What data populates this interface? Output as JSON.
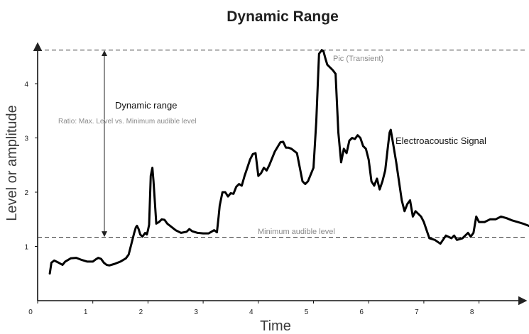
{
  "title": "Dynamic Range",
  "chart_data": {
    "type": "line",
    "title": "Dynamic Range",
    "xlabel": "Time",
    "ylabel": "Level or amplitude",
    "xlim": [
      0,
      9
    ],
    "ylim": [
      0,
      4.7
    ],
    "x_ticks": [
      "0",
      "1",
      "2",
      "3",
      "4",
      "5",
      "6",
      "7",
      "8"
    ],
    "y_ticks": [
      "1",
      "2",
      "3",
      "4"
    ],
    "max_level": 4.62,
    "min_audible_level": 1.17,
    "annotations": {
      "dynamic_range": "Dynamic range",
      "ratio": "Ratio: Max. Level vs. Minimum audible level",
      "peak": "Pic (Transient)",
      "signal": "Electroacoustic Signal",
      "minimum": "Minimum audible level"
    },
    "series": [
      {
        "x": [
          0.22,
          0.25,
          0.3,
          0.38,
          0.45,
          0.5,
          0.6,
          0.7,
          0.8,
          0.9,
          1.0,
          1.05,
          1.1,
          1.15,
          1.2,
          1.25,
          1.3,
          1.4,
          1.5,
          1.6,
          1.65,
          1.7,
          1.75,
          1.78,
          1.8,
          1.83,
          1.86,
          1.9,
          1.95,
          1.98,
          2.0,
          2.02,
          2.05,
          2.08,
          2.1,
          2.15,
          2.2,
          2.25,
          2.3,
          2.35,
          2.4,
          2.5,
          2.6,
          2.7,
          2.75,
          2.8,
          2.9,
          3.0,
          3.1,
          3.2,
          3.25,
          3.28,
          3.3,
          3.35,
          3.4,
          3.45,
          3.5,
          3.55,
          3.6,
          3.65,
          3.7,
          3.75,
          3.8,
          3.85,
          3.9,
          3.95,
          4.0,
          4.05,
          4.1,
          4.15,
          4.2,
          4.3,
          4.4,
          4.45,
          4.5,
          4.55,
          4.6,
          4.7,
          4.8,
          4.85,
          4.9,
          5.0,
          5.05,
          5.1,
          5.15,
          5.18,
          5.22,
          5.25,
          5.3,
          5.35,
          5.4,
          5.45,
          5.5,
          5.55,
          5.6,
          5.65,
          5.7,
          5.75,
          5.8,
          5.85,
          5.9,
          5.95,
          6.0,
          6.05,
          6.1,
          6.15,
          6.2,
          6.25,
          6.3,
          6.35,
          6.38,
          6.4,
          6.45,
          6.5,
          6.55,
          6.6,
          6.65,
          6.7,
          6.75,
          6.8,
          6.85,
          6.9,
          6.95,
          7.0,
          7.05,
          7.1,
          7.2,
          7.3,
          7.4,
          7.5,
          7.55,
          7.6,
          7.7,
          7.75,
          7.8,
          7.85,
          7.9,
          7.95,
          8.0,
          8.1,
          8.2,
          8.3,
          8.4,
          8.5,
          8.6,
          8.7,
          8.8,
          8.9,
          9.0
        ],
        "y": [
          0.5,
          0.7,
          0.74,
          0.7,
          0.66,
          0.72,
          0.78,
          0.79,
          0.75,
          0.72,
          0.72,
          0.76,
          0.79,
          0.77,
          0.7,
          0.66,
          0.65,
          0.68,
          0.72,
          0.78,
          0.85,
          1.05,
          1.25,
          1.35,
          1.38,
          1.32,
          1.22,
          1.18,
          1.25,
          1.22,
          1.3,
          1.4,
          2.3,
          2.45,
          2.2,
          1.42,
          1.45,
          1.5,
          1.49,
          1.42,
          1.38,
          1.3,
          1.25,
          1.27,
          1.32,
          1.28,
          1.25,
          1.24,
          1.24,
          1.3,
          1.26,
          1.55,
          1.75,
          2.0,
          2.0,
          1.92,
          1.98,
          1.97,
          2.1,
          2.15,
          2.12,
          2.3,
          2.45,
          2.6,
          2.7,
          2.72,
          2.3,
          2.35,
          2.45,
          2.4,
          2.5,
          2.75,
          2.92,
          2.93,
          2.82,
          2.82,
          2.8,
          2.72,
          2.2,
          2.15,
          2.2,
          2.45,
          3.3,
          4.55,
          4.62,
          4.6,
          4.45,
          4.35,
          4.3,
          4.25,
          4.18,
          3.1,
          2.55,
          2.8,
          2.72,
          2.95,
          3.0,
          2.98,
          3.05,
          3.0,
          2.85,
          2.8,
          2.6,
          2.2,
          2.12,
          2.25,
          2.05,
          2.2,
          2.4,
          2.85,
          3.1,
          3.15,
          2.85,
          2.55,
          2.2,
          1.85,
          1.65,
          1.78,
          1.85,
          1.55,
          1.65,
          1.6,
          1.55,
          1.45,
          1.3,
          1.15,
          1.12,
          1.05,
          1.2,
          1.15,
          1.2,
          1.12,
          1.15,
          1.2,
          1.25,
          1.18,
          1.25,
          1.55,
          1.45,
          1.45,
          1.5,
          1.5,
          1.55,
          1.52,
          1.48,
          1.45,
          1.42,
          1.38,
          1.35
        ]
      }
    ]
  }
}
